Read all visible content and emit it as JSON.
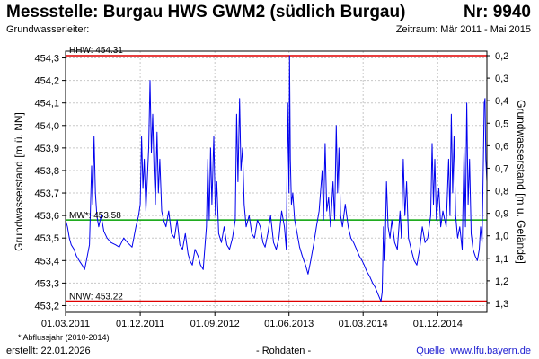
{
  "header": {
    "title": "Messstelle: Burgau HWS GWM2 (südlich Burgau)",
    "number": "Nr: 9940",
    "aquifer": "Grundwasserleiter:",
    "period": "Zeitraum: Mär 2011 - Mai 2015"
  },
  "footer": {
    "footnote": "* Abflussjahr (2010-2014)",
    "created": "erstellt:  22.01.2026",
    "raw": "- Rohdaten -",
    "source": "Quelle: www.lfu.bayern.de"
  },
  "colors": {
    "series": "#0000ee",
    "extreme_lines": "#e00000",
    "mean_line": "#00a000",
    "grid": "#c8c8c8",
    "link": "#1b1bd0"
  },
  "chart_data": {
    "type": "line",
    "title": "",
    "xlabel": "",
    "ylabel": "Grundwasserstand [m ü. NN]",
    "ylabel_right": "Grundwasserstand [m u. Gelände]",
    "xlim": [
      "2011-03-01",
      "2015-05-31"
    ],
    "ylim": [
      453.17,
      454.33
    ],
    "x_ticks": [
      "01.03.2011",
      "01.12.2011",
      "01.09.2012",
      "01.06.2013",
      "01.03.2014",
      "01.12.2014"
    ],
    "y_ticks": [
      "454,3",
      "454,2",
      "454,1",
      "454,0",
      "453,9",
      "453,8",
      "453,7",
      "453,6",
      "453,5",
      "453,4",
      "453,3",
      "453,2"
    ],
    "y_ticks_right": [
      "0,2",
      "0,3",
      "0,4",
      "0,5",
      "0,6",
      "0,7",
      "0,8",
      "0,9",
      "1,0",
      "1,1",
      "1,2",
      "1,3"
    ],
    "right_axis_reference": 454.51,
    "grid": true,
    "reference_lines": [
      {
        "label": "HHW: 454.31",
        "value": 454.31,
        "color": "#e00000"
      },
      {
        "label": "MW*: 453.58",
        "value": 453.58,
        "color": "#00a000"
      },
      {
        "label": "NNW: 453.22",
        "value": 453.22,
        "color": "#e00000"
      }
    ],
    "series": [
      {
        "color": "#0000ee",
        "points": [
          [
            "2011-03-01",
            453.58
          ],
          [
            "2011-03-08",
            453.55
          ],
          [
            "2011-03-15",
            453.5
          ],
          [
            "2011-03-22",
            453.47
          ],
          [
            "2011-04-01",
            453.45
          ],
          [
            "2011-04-10",
            453.42
          ],
          [
            "2011-04-20",
            453.4
          ],
          [
            "2011-05-01",
            453.38
          ],
          [
            "2011-05-10",
            453.36
          ],
          [
            "2011-05-20",
            453.42
          ],
          [
            "2011-05-28",
            453.47
          ],
          [
            "2011-06-05",
            453.82
          ],
          [
            "2011-06-09",
            453.65
          ],
          [
            "2011-06-14",
            453.95
          ],
          [
            "2011-06-19",
            453.7
          ],
          [
            "2011-06-24",
            453.6
          ],
          [
            "2011-07-01",
            453.55
          ],
          [
            "2011-07-10",
            453.6
          ],
          [
            "2011-07-20",
            453.53
          ],
          [
            "2011-08-01",
            453.5
          ],
          [
            "2011-08-15",
            453.48
          ],
          [
            "2011-09-01",
            453.47
          ],
          [
            "2011-09-15",
            453.46
          ],
          [
            "2011-10-01",
            453.5
          ],
          [
            "2011-10-15",
            453.48
          ],
          [
            "2011-11-01",
            453.46
          ],
          [
            "2011-11-15",
            453.55
          ],
          [
            "2011-11-25",
            453.6
          ],
          [
            "2011-12-01",
            453.65
          ],
          [
            "2011-12-06",
            453.95
          ],
          [
            "2011-12-11",
            453.72
          ],
          [
            "2011-12-16",
            453.85
          ],
          [
            "2011-12-22",
            453.62
          ],
          [
            "2012-01-01",
            453.9
          ],
          [
            "2012-01-06",
            454.2
          ],
          [
            "2012-01-11",
            453.88
          ],
          [
            "2012-01-16",
            454.05
          ],
          [
            "2012-01-21",
            453.8
          ],
          [
            "2012-01-26",
            453.65
          ],
          [
            "2012-02-01",
            453.97
          ],
          [
            "2012-02-06",
            453.7
          ],
          [
            "2012-02-11",
            453.85
          ],
          [
            "2012-02-18",
            453.62
          ],
          [
            "2012-02-25",
            453.58
          ],
          [
            "2012-03-05",
            453.55
          ],
          [
            "2012-03-15",
            453.62
          ],
          [
            "2012-03-25",
            453.52
          ],
          [
            "2012-04-05",
            453.5
          ],
          [
            "2012-04-15",
            453.58
          ],
          [
            "2012-04-25",
            453.47
          ],
          [
            "2012-05-05",
            453.45
          ],
          [
            "2012-05-15",
            453.52
          ],
          [
            "2012-05-25",
            453.43
          ],
          [
            "2012-06-01",
            453.4
          ],
          [
            "2012-06-10",
            453.38
          ],
          [
            "2012-06-20",
            453.45
          ],
          [
            "2012-07-01",
            453.42
          ],
          [
            "2012-07-10",
            453.38
          ],
          [
            "2012-07-20",
            453.36
          ],
          [
            "2012-08-01",
            453.55
          ],
          [
            "2012-08-06",
            453.85
          ],
          [
            "2012-08-11",
            453.58
          ],
          [
            "2012-08-16",
            453.9
          ],
          [
            "2012-08-21",
            453.65
          ],
          [
            "2012-08-28",
            453.95
          ],
          [
            "2012-09-03",
            453.6
          ],
          [
            "2012-09-08",
            453.75
          ],
          [
            "2012-09-15",
            453.52
          ],
          [
            "2012-09-25",
            453.48
          ],
          [
            "2012-10-05",
            453.55
          ],
          [
            "2012-10-15",
            453.47
          ],
          [
            "2012-10-25",
            453.45
          ],
          [
            "2012-11-05",
            453.5
          ],
          [
            "2012-11-15",
            453.58
          ],
          [
            "2012-11-20",
            454.05
          ],
          [
            "2012-11-25",
            453.75
          ],
          [
            "2012-12-01",
            454.12
          ],
          [
            "2012-12-06",
            453.8
          ],
          [
            "2012-12-12",
            453.9
          ],
          [
            "2012-12-18",
            453.65
          ],
          [
            "2012-12-25",
            453.55
          ],
          [
            "2013-01-05",
            453.6
          ],
          [
            "2013-01-15",
            453.52
          ],
          [
            "2013-01-25",
            453.5
          ],
          [
            "2013-02-05",
            453.58
          ],
          [
            "2013-02-15",
            453.55
          ],
          [
            "2013-02-25",
            453.48
          ],
          [
            "2013-03-05",
            453.46
          ],
          [
            "2013-03-15",
            453.52
          ],
          [
            "2013-03-25",
            453.6
          ],
          [
            "2013-04-05",
            453.48
          ],
          [
            "2013-04-15",
            453.45
          ],
          [
            "2013-04-25",
            453.5
          ],
          [
            "2013-05-05",
            453.62
          ],
          [
            "2013-05-15",
            453.55
          ],
          [
            "2013-05-22",
            453.45
          ],
          [
            "2013-05-27",
            454.1
          ],
          [
            "2013-06-01",
            453.7
          ],
          [
            "2013-06-03",
            454.31
          ],
          [
            "2013-06-06",
            453.85
          ],
          [
            "2013-06-10",
            453.65
          ],
          [
            "2013-06-15",
            453.7
          ],
          [
            "2013-06-22",
            453.58
          ],
          [
            "2013-07-01",
            453.52
          ],
          [
            "2013-07-10",
            453.46
          ],
          [
            "2013-07-20",
            453.42
          ],
          [
            "2013-08-01",
            453.38
          ],
          [
            "2013-08-10",
            453.34
          ],
          [
            "2013-08-20",
            453.4
          ],
          [
            "2013-09-01",
            453.48
          ],
          [
            "2013-09-10",
            453.55
          ],
          [
            "2013-09-20",
            453.62
          ],
          [
            "2013-10-01",
            453.8
          ],
          [
            "2013-10-06",
            453.58
          ],
          [
            "2013-10-12",
            453.92
          ],
          [
            "2013-10-18",
            453.62
          ],
          [
            "2013-10-25",
            453.68
          ],
          [
            "2013-11-01",
            453.55
          ],
          [
            "2013-11-10",
            453.75
          ],
          [
            "2013-11-16",
            453.58
          ],
          [
            "2013-11-22",
            454.0
          ],
          [
            "2013-11-27",
            453.7
          ],
          [
            "2013-12-02",
            453.9
          ],
          [
            "2013-12-08",
            453.6
          ],
          [
            "2013-12-15",
            453.55
          ],
          [
            "2013-12-25",
            453.65
          ],
          [
            "2014-01-05",
            453.55
          ],
          [
            "2014-01-15",
            453.5
          ],
          [
            "2014-01-25",
            453.48
          ],
          [
            "2014-02-05",
            453.45
          ],
          [
            "2014-02-15",
            453.42
          ],
          [
            "2014-02-25",
            453.4
          ],
          [
            "2014-03-05",
            453.38
          ],
          [
            "2014-03-15",
            453.35
          ],
          [
            "2014-03-25",
            453.33
          ],
          [
            "2014-04-05",
            453.3
          ],
          [
            "2014-04-15",
            453.28
          ],
          [
            "2014-04-25",
            453.25
          ],
          [
            "2014-05-02",
            453.23
          ],
          [
            "2014-05-06",
            453.22
          ],
          [
            "2014-05-10",
            453.26
          ],
          [
            "2014-05-15",
            453.55
          ],
          [
            "2014-05-20",
            453.4
          ],
          [
            "2014-05-26",
            453.75
          ],
          [
            "2014-06-01",
            453.55
          ],
          [
            "2014-06-08",
            453.5
          ],
          [
            "2014-06-15",
            453.58
          ],
          [
            "2014-06-25",
            453.48
          ],
          [
            "2014-07-05",
            453.45
          ],
          [
            "2014-07-15",
            453.62
          ],
          [
            "2014-07-20",
            453.5
          ],
          [
            "2014-07-27",
            453.85
          ],
          [
            "2014-08-02",
            453.6
          ],
          [
            "2014-08-08",
            453.75
          ],
          [
            "2014-08-15",
            453.5
          ],
          [
            "2014-08-25",
            453.45
          ],
          [
            "2014-09-05",
            453.4
          ],
          [
            "2014-09-15",
            453.38
          ],
          [
            "2014-09-25",
            453.45
          ],
          [
            "2014-10-05",
            453.55
          ],
          [
            "2014-10-15",
            453.48
          ],
          [
            "2014-10-25",
            453.5
          ],
          [
            "2014-11-05",
            453.6
          ],
          [
            "2014-11-10",
            453.92
          ],
          [
            "2014-11-15",
            453.65
          ],
          [
            "2014-11-20",
            453.85
          ],
          [
            "2014-11-26",
            453.58
          ],
          [
            "2014-12-05",
            453.72
          ],
          [
            "2014-12-12",
            453.55
          ],
          [
            "2014-12-20",
            453.62
          ],
          [
            "2015-01-01",
            453.55
          ],
          [
            "2015-01-10",
            453.85
          ],
          [
            "2015-01-15",
            453.6
          ],
          [
            "2015-01-20",
            454.05
          ],
          [
            "2015-01-25",
            453.7
          ],
          [
            "2015-01-30",
            453.95
          ],
          [
            "2015-02-05",
            453.6
          ],
          [
            "2015-02-12",
            453.5
          ],
          [
            "2015-02-20",
            453.55
          ],
          [
            "2015-03-01",
            453.45
          ],
          [
            "2015-03-08",
            453.9
          ],
          [
            "2015-03-13",
            453.55
          ],
          [
            "2015-03-18",
            454.1
          ],
          [
            "2015-03-23",
            453.65
          ],
          [
            "2015-03-28",
            453.85
          ],
          [
            "2015-04-03",
            453.52
          ],
          [
            "2015-04-10",
            453.45
          ],
          [
            "2015-04-18",
            453.42
          ],
          [
            "2015-04-26",
            453.4
          ],
          [
            "2015-05-03",
            453.45
          ],
          [
            "2015-05-08",
            453.55
          ],
          [
            "2015-05-13",
            453.48
          ],
          [
            "2015-05-18",
            453.85
          ],
          [
            "2015-05-21",
            454.1
          ],
          [
            "2015-05-24",
            454.12
          ],
          [
            "2015-05-27",
            453.85
          ],
          [
            "2015-05-31",
            453.75
          ]
        ]
      }
    ]
  }
}
